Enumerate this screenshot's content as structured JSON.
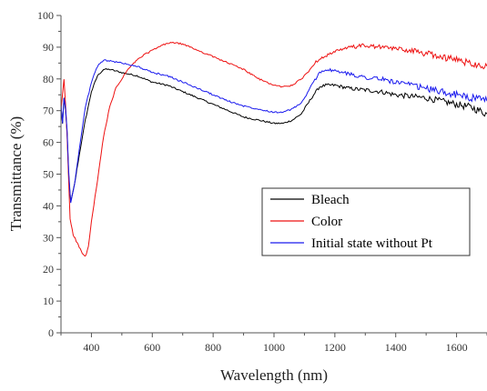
{
  "chart_data": {
    "type": "line",
    "title": "",
    "xlabel": "Wavelength (nm)",
    "ylabel": "Transmittance (%)",
    "xlim": [
      300,
      1700
    ],
    "ylim": [
      0,
      100
    ],
    "xticks": [
      400,
      600,
      800,
      1000,
      1200,
      1400,
      1600
    ],
    "yticks": [
      0,
      10,
      20,
      30,
      40,
      50,
      60,
      70,
      80,
      90,
      100
    ],
    "grid": false,
    "legend_position": "lower-right",
    "series": [
      {
        "name": "Bleach",
        "color": "#000000",
        "points": [
          [
            300,
            71
          ],
          [
            305,
            66
          ],
          [
            310,
            74
          ],
          [
            315,
            70
          ],
          [
            320,
            63
          ],
          [
            325,
            50
          ],
          [
            332,
            41
          ],
          [
            345,
            47
          ],
          [
            360,
            56
          ],
          [
            380,
            67
          ],
          [
            400,
            76
          ],
          [
            420,
            81
          ],
          [
            440,
            83
          ],
          [
            460,
            83
          ],
          [
            500,
            82
          ],
          [
            550,
            81
          ],
          [
            600,
            79
          ],
          [
            650,
            78
          ],
          [
            700,
            76
          ],
          [
            750,
            74
          ],
          [
            800,
            72
          ],
          [
            850,
            70
          ],
          [
            900,
            68
          ],
          [
            950,
            67
          ],
          [
            1000,
            66
          ],
          [
            1030,
            66
          ],
          [
            1060,
            67
          ],
          [
            1090,
            69
          ],
          [
            1110,
            72
          ],
          [
            1130,
            75
          ],
          [
            1150,
            77.5
          ],
          [
            1170,
            78
          ],
          [
            1200,
            78
          ],
          [
            1250,
            77
          ],
          [
            1300,
            76.5
          ],
          [
            1350,
            76
          ],
          [
            1400,
            75
          ],
          [
            1450,
            74.5
          ],
          [
            1500,
            74
          ],
          [
            1550,
            73
          ],
          [
            1600,
            72
          ],
          [
            1650,
            71
          ],
          [
            1700,
            69
          ]
        ]
      },
      {
        "name": "Color",
        "color": "#ee1111",
        "points": [
          [
            300,
            70
          ],
          [
            305,
            75
          ],
          [
            310,
            80
          ],
          [
            315,
            72
          ],
          [
            320,
            62
          ],
          [
            325,
            48
          ],
          [
            330,
            36
          ],
          [
            340,
            31
          ],
          [
            350,
            29
          ],
          [
            360,
            27
          ],
          [
            370,
            25
          ],
          [
            380,
            24
          ],
          [
            390,
            27
          ],
          [
            400,
            35
          ],
          [
            420,
            48
          ],
          [
            440,
            62
          ],
          [
            460,
            71
          ],
          [
            480,
            77
          ],
          [
            500,
            80
          ],
          [
            520,
            83
          ],
          [
            550,
            86
          ],
          [
            580,
            88
          ],
          [
            600,
            89
          ],
          [
            630,
            90.5
          ],
          [
            660,
            91.5
          ],
          [
            700,
            91
          ],
          [
            750,
            89
          ],
          [
            800,
            87
          ],
          [
            850,
            85
          ],
          [
            900,
            83
          ],
          [
            950,
            80
          ],
          [
            1000,
            78
          ],
          [
            1030,
            77.5
          ],
          [
            1060,
            78
          ],
          [
            1090,
            80
          ],
          [
            1110,
            82
          ],
          [
            1130,
            84.5
          ],
          [
            1150,
            86.5
          ],
          [
            1200,
            88.5
          ],
          [
            1250,
            90
          ],
          [
            1300,
            90.5
          ],
          [
            1350,
            90
          ],
          [
            1400,
            89.5
          ],
          [
            1450,
            89
          ],
          [
            1500,
            88
          ],
          [
            1550,
            87
          ],
          [
            1600,
            86
          ],
          [
            1650,
            85
          ],
          [
            1700,
            84
          ]
        ]
      },
      {
        "name": "Initial state without Pt",
        "color": "#1a1aee",
        "points": [
          [
            300,
            72
          ],
          [
            305,
            66
          ],
          [
            310,
            74
          ],
          [
            315,
            71
          ],
          [
            320,
            64
          ],
          [
            325,
            51
          ],
          [
            332,
            41
          ],
          [
            345,
            47
          ],
          [
            360,
            58
          ],
          [
            380,
            71
          ],
          [
            400,
            79
          ],
          [
            420,
            84
          ],
          [
            440,
            86
          ],
          [
            470,
            85.5
          ],
          [
            500,
            85
          ],
          [
            550,
            84
          ],
          [
            600,
            82
          ],
          [
            650,
            81
          ],
          [
            700,
            79
          ],
          [
            750,
            77
          ],
          [
            800,
            75
          ],
          [
            850,
            73
          ],
          [
            900,
            71.5
          ],
          [
            950,
            70.5
          ],
          [
            1000,
            69.5
          ],
          [
            1030,
            69.5
          ],
          [
            1060,
            70.5
          ],
          [
            1090,
            72.5
          ],
          [
            1110,
            75.5
          ],
          [
            1130,
            79
          ],
          [
            1150,
            82
          ],
          [
            1170,
            83
          ],
          [
            1200,
            82.5
          ],
          [
            1250,
            81.5
          ],
          [
            1300,
            80.5
          ],
          [
            1350,
            80
          ],
          [
            1400,
            79
          ],
          [
            1450,
            78
          ],
          [
            1500,
            77
          ],
          [
            1550,
            76
          ],
          [
            1600,
            75
          ],
          [
            1650,
            74
          ],
          [
            1700,
            73
          ]
        ]
      }
    ]
  }
}
